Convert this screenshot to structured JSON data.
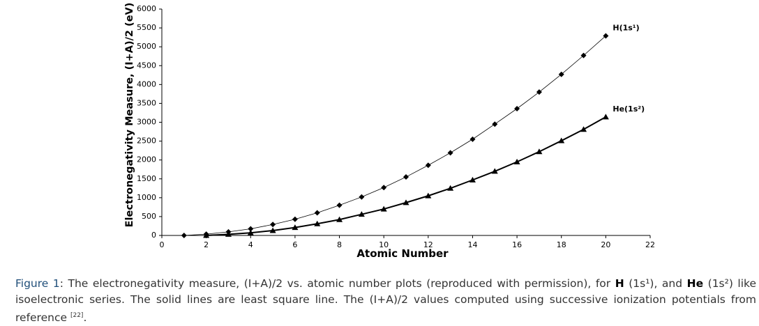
{
  "chart_data": {
    "type": "line",
    "xlabel": "Atomic Number",
    "ylabel": "Electronegativity Measure, (I+A)/2 (eV)",
    "xlim": [
      0,
      22
    ],
    "xticks": [
      0,
      2,
      4,
      6,
      8,
      10,
      12,
      14,
      16,
      18,
      20,
      22
    ],
    "ylim": [
      0,
      6000
    ],
    "yticks": [
      0,
      500,
      1000,
      1500,
      2000,
      2500,
      3000,
      3500,
      4000,
      4500,
      5000,
      5500,
      6000
    ],
    "series": [
      {
        "name": "H(1s¹)",
        "color": "#000000",
        "marker": "diamond",
        "line_width": 0.8,
        "x": [
          1,
          2,
          3,
          4,
          5,
          6,
          7,
          8,
          9,
          10,
          11,
          12,
          13,
          14,
          15,
          16,
          17,
          18,
          19,
          20
        ],
        "values": [
          0,
          35,
          95,
          175,
          290,
          430,
          600,
          800,
          1020,
          1270,
          1550,
          1860,
          2190,
          2550,
          2950,
          3360,
          3800,
          4270,
          4770,
          5290
        ]
      },
      {
        "name": "He(1s²)",
        "color": "#000000",
        "marker": "triangle",
        "line_width": 2,
        "x": [
          2,
          3,
          4,
          5,
          6,
          7,
          8,
          9,
          10,
          11,
          12,
          13,
          14,
          15,
          16,
          17,
          18,
          19,
          20
        ],
        "values": [
          0,
          30,
          70,
          130,
          210,
          310,
          420,
          560,
          700,
          870,
          1050,
          1250,
          1470,
          1700,
          1950,
          2220,
          2510,
          2810,
          3140
        ]
      }
    ]
  },
  "caption": {
    "parts": [
      "Figure 1",
      ": The electronegativity measure, (I+A)/2 vs. atomic number plots (reproduced with permission), for ",
      "H",
      " (1s¹), and ",
      "He",
      " (1s²) like isoelectronic series. The solid lines are least square line. The (I+A)/2 values computed using successive ionization potentials from reference ",
      "[22]",
      "."
    ]
  }
}
